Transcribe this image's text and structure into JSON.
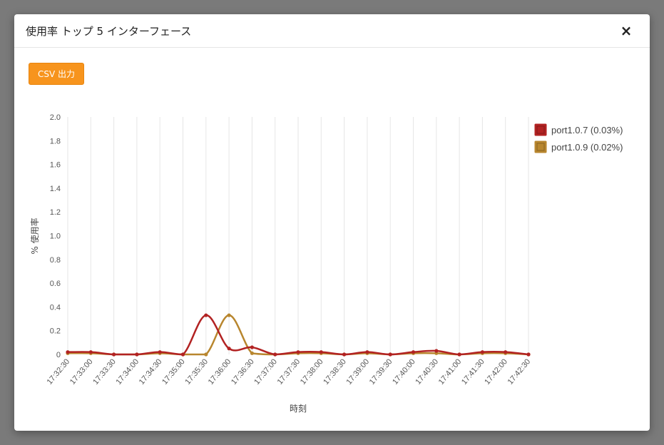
{
  "modal": {
    "title": "使用率 トップ 5 インターフェース",
    "close_label": "×",
    "csv_button_label": "CSV 出力"
  },
  "chart_data": {
    "type": "line",
    "title": "",
    "xlabel": "時刻",
    "ylabel": "% 使用率",
    "ylim": [
      0,
      2.0
    ],
    "yticks": [
      "2.0",
      "1.8",
      "1.6",
      "1.4",
      "1.2",
      "1.0",
      "0.8",
      "0.6",
      "0.4",
      "0.2",
      "0"
    ],
    "grid": "vertical",
    "legend_position": "top-right",
    "x": [
      "17:32:30",
      "17:33:00",
      "17:33:30",
      "17:34:00",
      "17:34:30",
      "17:35:00",
      "17:35:30",
      "17:36:00",
      "17:36:30",
      "17:37:00",
      "17:37:30",
      "17:38:00",
      "17:38:30",
      "17:39:00",
      "17:39:30",
      "17:40:00",
      "17:40:30",
      "17:41:00",
      "17:41:30",
      "17:42:00",
      "17:42:30"
    ],
    "series": [
      {
        "name": "port1.0.7 (0.03%)",
        "color": "#b22222",
        "values": [
          0.02,
          0.02,
          0.0,
          0.0,
          0.02,
          0.0,
          0.33,
          0.05,
          0.06,
          0.0,
          0.02,
          0.02,
          0.0,
          0.02,
          0.0,
          0.02,
          0.03,
          0.0,
          0.02,
          0.02,
          0.0
        ]
      },
      {
        "name": "port1.0.9 (0.02%)",
        "color": "#b8862e",
        "values": [
          0.01,
          0.01,
          0.0,
          0.0,
          0.01,
          0.0,
          0.0,
          0.33,
          0.01,
          0.0,
          0.01,
          0.01,
          0.0,
          0.01,
          0.0,
          0.01,
          0.01,
          0.0,
          0.01,
          0.01,
          0.0
        ]
      }
    ]
  }
}
